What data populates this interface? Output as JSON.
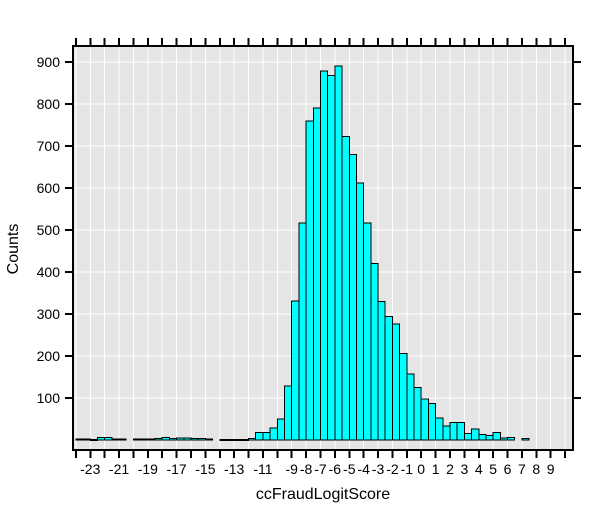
{
  "page": {
    "background_color": "#FFFFFF"
  },
  "chart_data": {
    "type": "bar",
    "subtype": "histogram",
    "title": "",
    "xlabel": "ccFraudLogitScore",
    "ylabel": "Counts",
    "legend": "none",
    "grid": "on",
    "panel_bg_color": "#E5E5E5",
    "grid_color": "#FFFFFF",
    "bar_fill_color": "#00FFFF",
    "bar_edge_color": "#000000",
    "axis_color": "#000000",
    "x_range": [
      -24.2,
      10.55
    ],
    "y_range": [
      -24,
      938
    ],
    "x_tick_step": 1,
    "x_tick_min": -24,
    "x_tick_max": 10,
    "x_tick_labels": [
      -23,
      -21,
      -19,
      -17,
      -15,
      -13,
      -11,
      -9,
      -8,
      -7,
      -6,
      -5,
      -4,
      -3,
      -2,
      -1,
      0,
      1,
      2,
      3,
      4,
      5,
      6,
      7,
      8,
      9
    ],
    "y_ticks": [
      100,
      200,
      300,
      400,
      500,
      600,
      700,
      800,
      900
    ],
    "y_tick_labels": [
      "100",
      "200",
      "300",
      "400",
      "500",
      "600",
      "700",
      "800",
      "900"
    ],
    "bins": {
      "start": -24.0,
      "width": 0.5,
      "counts": [
        2,
        2,
        1,
        6,
        6,
        2,
        2,
        0,
        2,
        2,
        2,
        3,
        6,
        3,
        4,
        4,
        3,
        3,
        2,
        0,
        1,
        1,
        1,
        1,
        3,
        18,
        18,
        28,
        50,
        128,
        331,
        516,
        760,
        790,
        878,
        868,
        890,
        722,
        680,
        612,
        517,
        420,
        330,
        294,
        276,
        206,
        157,
        125,
        98,
        87,
        52,
        33,
        41,
        42,
        15,
        26,
        13,
        11,
        18,
        4,
        6,
        0,
        3,
        0,
        0,
        0,
        0,
        0
      ]
    }
  }
}
